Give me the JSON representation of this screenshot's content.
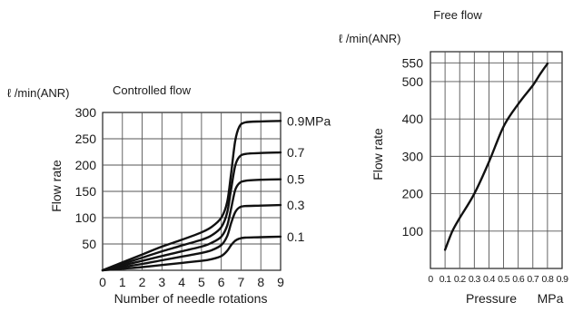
{
  "chart_data": [
    {
      "type": "line",
      "title": "Controlled flow",
      "unit_label": "ℓ /min(ANR)",
      "xlabel": "Number of needle rotations",
      "ylabel": "Flow rate",
      "xlim": [
        0,
        9
      ],
      "ylim": [
        0,
        300
      ],
      "x_ticks": [
        "0",
        "1",
        "2",
        "3",
        "4",
        "5",
        "6",
        "7",
        "8",
        "9"
      ],
      "y_ticks": [
        {
          "label": "300",
          "value": 300
        },
        {
          "label": "250",
          "value": 250
        },
        {
          "label": "200",
          "value": 200
        },
        {
          "label": "150",
          "value": 150
        },
        {
          "label": "100",
          "value": 100
        },
        {
          "label": "50",
          "value": 50
        }
      ],
      "grid": true,
      "series": [
        {
          "name": "0.9MPa",
          "points": [
            [
              0,
              0
            ],
            [
              1,
              15
            ],
            [
              2,
              30
            ],
            [
              3,
              45
            ],
            [
              4,
              58
            ],
            [
              5,
              72
            ],
            [
              5.5,
              82
            ],
            [
              6,
              100
            ],
            [
              6.3,
              130
            ],
            [
              6.5,
              185
            ],
            [
              6.7,
              245
            ],
            [
              6.9,
              272
            ],
            [
              7.2,
              281
            ],
            [
              8,
              283
            ],
            [
              9,
              284
            ]
          ]
        },
        {
          "name": "0.7",
          "points": [
            [
              0,
              0
            ],
            [
              1,
              12
            ],
            [
              2,
              24
            ],
            [
              3,
              36
            ],
            [
              4,
              47
            ],
            [
              5,
              58
            ],
            [
              5.5,
              66
            ],
            [
              6,
              82
            ],
            [
              6.3,
              110
            ],
            [
              6.5,
              155
            ],
            [
              6.7,
              198
            ],
            [
              6.9,
              215
            ],
            [
              7.2,
              221
            ],
            [
              8,
              223
            ],
            [
              9,
              224
            ]
          ]
        },
        {
          "name": "0.5",
          "points": [
            [
              0,
              0
            ],
            [
              1,
              9
            ],
            [
              2,
              18
            ],
            [
              3,
              27
            ],
            [
              4,
              36
            ],
            [
              5,
              45
            ],
            [
              5.5,
              52
            ],
            [
              6,
              64
            ],
            [
              6.3,
              85
            ],
            [
              6.5,
              118
            ],
            [
              6.7,
              152
            ],
            [
              6.9,
              165
            ],
            [
              7.2,
              170
            ],
            [
              8,
              172
            ],
            [
              9,
              173
            ]
          ]
        },
        {
          "name": "0.3",
          "points": [
            [
              0,
              0
            ],
            [
              1,
              6
            ],
            [
              2,
              12
            ],
            [
              3,
              19
            ],
            [
              4,
              26
            ],
            [
              5,
              33
            ],
            [
              5.5,
              38
            ],
            [
              6,
              48
            ],
            [
              6.3,
              65
            ],
            [
              6.5,
              90
            ],
            [
              6.7,
              110
            ],
            [
              6.9,
              119
            ],
            [
              7.2,
              122
            ],
            [
              8,
              123
            ],
            [
              9,
              124
            ]
          ]
        },
        {
          "name": "0.1",
          "points": [
            [
              0,
              0
            ],
            [
              1,
              3
            ],
            [
              2,
              6
            ],
            [
              3,
              10
            ],
            [
              4,
              14
            ],
            [
              5,
              18
            ],
            [
              5.5,
              21
            ],
            [
              6,
              27
            ],
            [
              6.3,
              37
            ],
            [
              6.5,
              48
            ],
            [
              6.7,
              56
            ],
            [
              6.9,
              60
            ],
            [
              7.2,
              62
            ],
            [
              8,
              63
            ],
            [
              9,
              64
            ]
          ]
        }
      ]
    },
    {
      "type": "line",
      "title": "Free flow",
      "unit_label": "ℓ /min(ANR)",
      "xlabel": "Pressure",
      "x_unit": "MPa",
      "ylabel": "Flow rate",
      "xlim": [
        0,
        0.9
      ],
      "ylim": [
        0,
        580
      ],
      "x_ticks": [
        "0",
        "0.1",
        "0.2",
        "0.3",
        "0.4",
        "0.5",
        "0.6",
        "0.7",
        "0.8",
        "0.9"
      ],
      "y_ticks": [
        {
          "label": "550",
          "value": 550
        },
        {
          "label": "500",
          "value": 500
        },
        {
          "label": "400",
          "value": 400
        },
        {
          "label": "300",
          "value": 300
        },
        {
          "label": "200",
          "value": 200
        },
        {
          "label": "100",
          "value": 100
        }
      ],
      "grid": true,
      "series": [
        {
          "points": [
            [
              0.1,
              50
            ],
            [
              0.15,
              100
            ],
            [
              0.2,
              135
            ],
            [
              0.3,
              200
            ],
            [
              0.4,
              285
            ],
            [
              0.5,
              380
            ],
            [
              0.6,
              440
            ],
            [
              0.7,
              490
            ],
            [
              0.75,
              520
            ],
            [
              0.8,
              548
            ]
          ]
        }
      ]
    }
  ]
}
